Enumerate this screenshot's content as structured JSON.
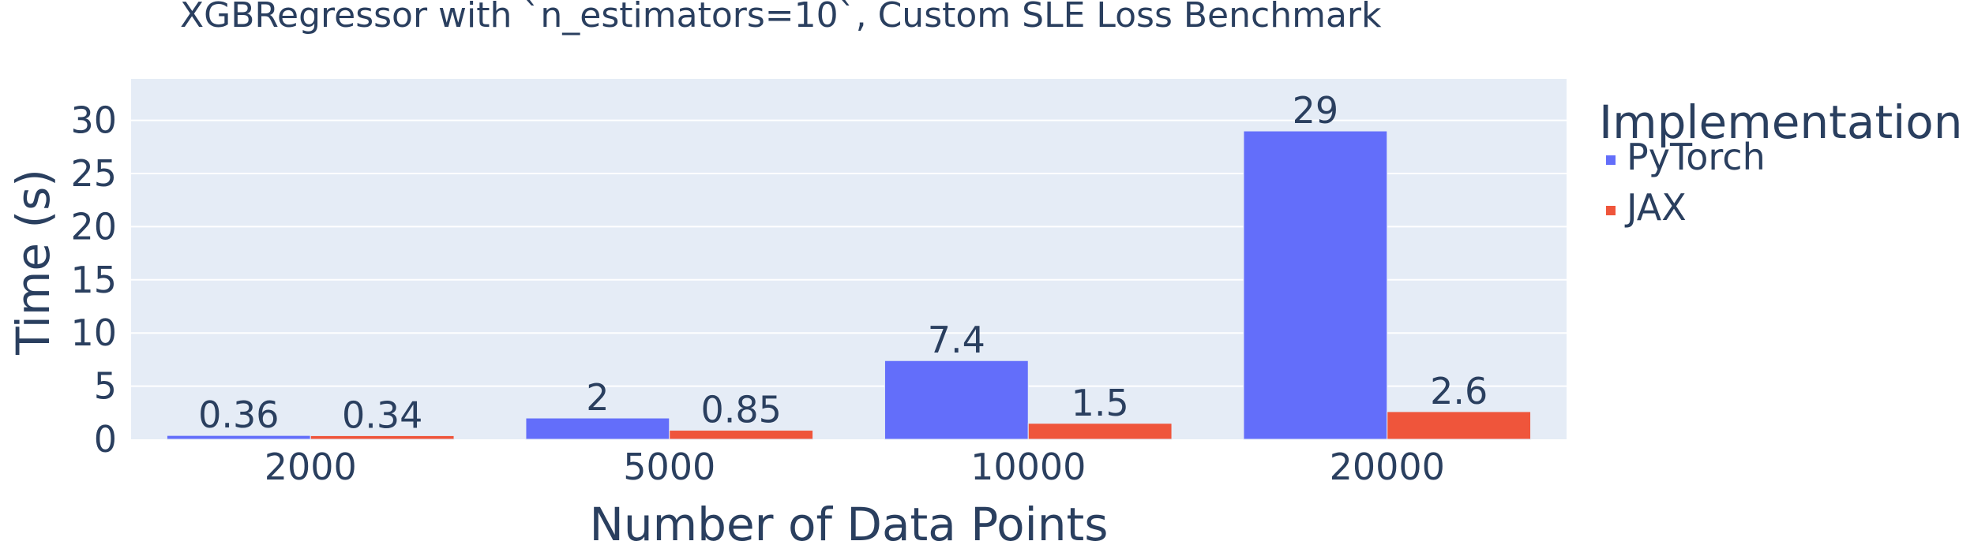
{
  "chart_data": {
    "type": "bar",
    "barmode": "group",
    "title": "XGBRegressor with `n_estimators=10`, Custom SLE Loss Benchmark",
    "xlabel": "Number of Data Points",
    "ylabel": "Time (s)",
    "categories": [
      "2000",
      "5000",
      "10000",
      "20000"
    ],
    "yticks": [
      0,
      5,
      10,
      15,
      20,
      25,
      30
    ],
    "ylim": [
      0,
      33.9
    ],
    "grid": true,
    "legend": {
      "title": "Implementation",
      "placement": "right"
    },
    "series": [
      {
        "name": "PyTorch",
        "color": "#636efa",
        "values": [
          0.36,
          2,
          7.4,
          29
        ],
        "labels": [
          "0.36",
          "2",
          "7.4",
          "29"
        ]
      },
      {
        "name": "JAX",
        "color": "#ef553b",
        "values": [
          0.34,
          0.85,
          1.5,
          2.6
        ],
        "labels": [
          "0.34",
          "0.85",
          "1.5",
          "2.6"
        ]
      }
    ],
    "colors": {
      "plot_background": "#e5ecf6",
      "gridline": "#ffffff",
      "text": "#2a3f5f"
    }
  }
}
